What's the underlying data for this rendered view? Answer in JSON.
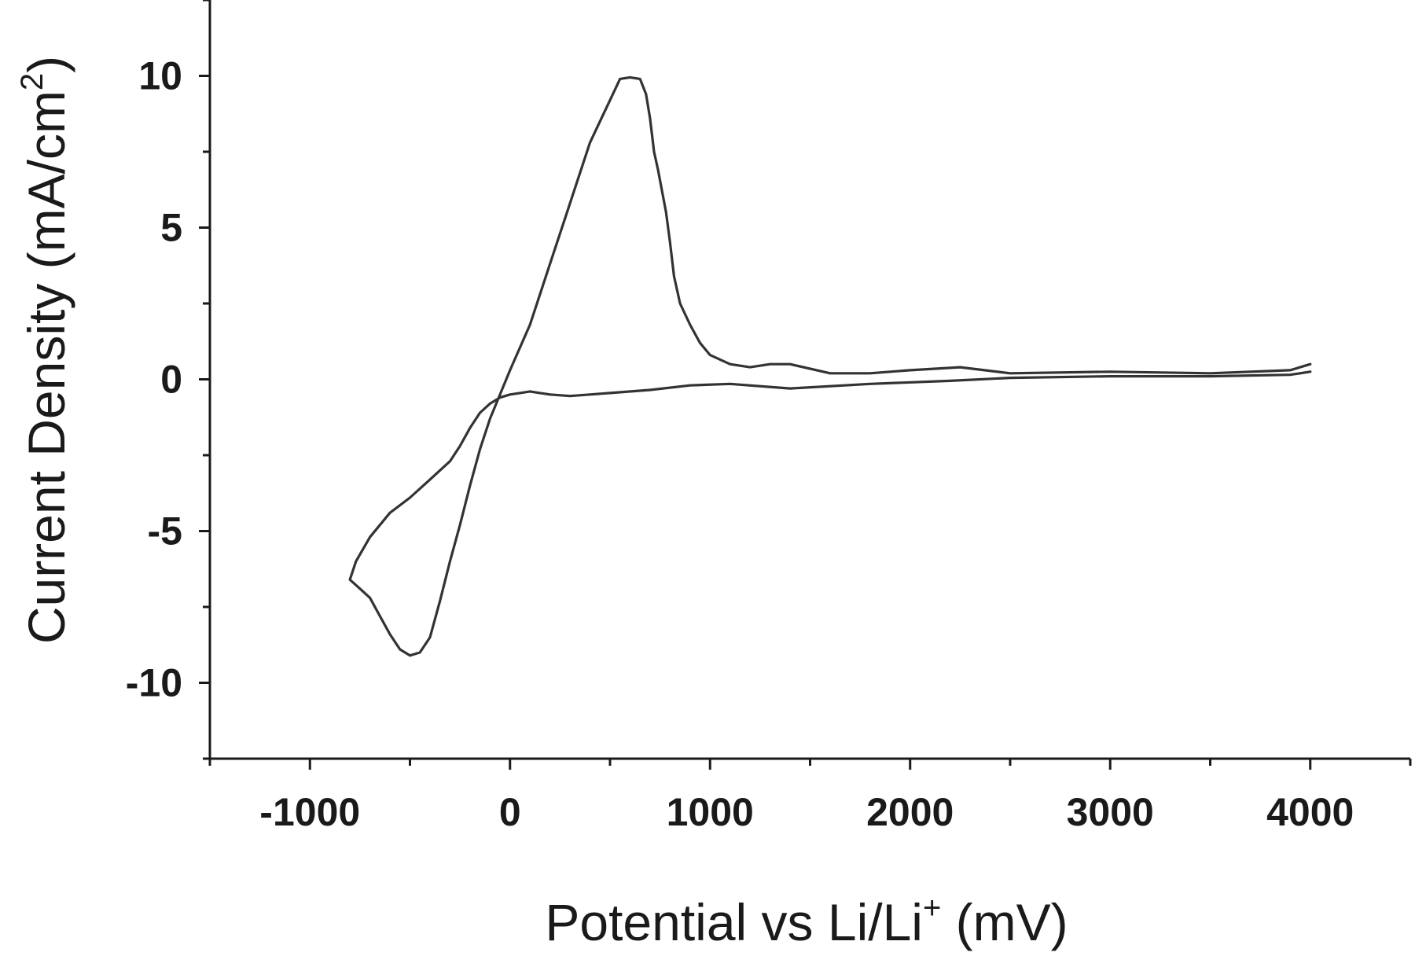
{
  "chart_data": {
    "type": "line",
    "title": "",
    "xlabel": {
      "main": "Potential vs Li/Li",
      "sup": "+",
      "unit": " (mV)"
    },
    "ylabel": {
      "main": "Current Density (mA/cm",
      "sup": "2",
      "close": ")"
    },
    "xlim": [
      -1500,
      4500
    ],
    "ylim": [
      -12.5,
      12.5
    ],
    "xticks": [
      -1000,
      0,
      1000,
      2000,
      3000,
      4000
    ],
    "xtick_labels": [
      "-1000",
      "0",
      "1000",
      "2000",
      "3000",
      "4000"
    ],
    "yticks": [
      -10,
      -5,
      0,
      5,
      10
    ],
    "ytick_labels": [
      "-10",
      "-5",
      "0",
      "5",
      "10"
    ],
    "grid": false,
    "legend": "none",
    "line_color": "#333333",
    "series": [
      {
        "x": [
          4000,
          3900,
          3500,
          3000,
          2500,
          2250,
          2000,
          1800,
          1600,
          1400,
          1300,
          1200,
          1100,
          1000,
          950,
          900,
          850,
          820,
          800,
          780,
          760,
          740,
          720,
          700,
          680,
          650,
          600,
          550,
          500,
          400,
          300,
          200,
          100,
          0,
          -100,
          -150,
          -200,
          -250,
          -300,
          -350,
          -400,
          -450,
          -500,
          -550,
          -600,
          -650,
          -700,
          -750,
          -800,
          -770,
          -700,
          -600,
          -500,
          -400,
          -300,
          -250,
          -200,
          -150,
          -100,
          -50,
          0,
          50,
          100,
          150,
          200,
          300,
          400,
          500,
          700,
          900,
          1100,
          1400,
          1800,
          2200,
          2500,
          3000,
          3500,
          3900,
          4000
        ],
        "y": [
          0.5,
          0.3,
          0.2,
          0.25,
          0.2,
          0.4,
          0.3,
          0.2,
          0.2,
          0.5,
          0.5,
          0.4,
          0.5,
          0.8,
          1.2,
          1.8,
          2.5,
          3.4,
          4.5,
          5.5,
          6.2,
          6.9,
          7.5,
          8.6,
          9.4,
          9.9,
          9.95,
          9.9,
          9.2,
          7.8,
          5.8,
          3.8,
          1.8,
          0.3,
          -1.3,
          -2.3,
          -3.5,
          -4.8,
          -6.0,
          -7.3,
          -8.5,
          -9.0,
          -9.1,
          -8.9,
          -8.4,
          -7.8,
          -7.2,
          -6.9,
          -6.6,
          -6.0,
          -5.2,
          -4.4,
          -3.9,
          -3.3,
          -2.7,
          -2.2,
          -1.6,
          -1.1,
          -0.8,
          -0.6,
          -0.5,
          -0.45,
          -0.4,
          -0.45,
          -0.5,
          -0.55,
          -0.5,
          -0.45,
          -0.35,
          -0.2,
          -0.15,
          -0.3,
          -0.15,
          -0.05,
          0.05,
          0.1,
          0.1,
          0.15,
          0.25
        ]
      }
    ]
  }
}
